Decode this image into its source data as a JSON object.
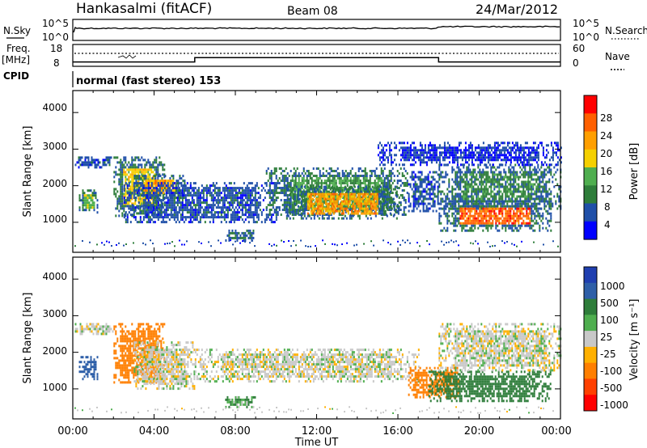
{
  "header": {
    "station": "Hankasalmi (fitACF)",
    "beam": "Beam 08",
    "date": "24/Mar/2012"
  },
  "noise_panel": {
    "left_label": "N.Sky",
    "left_ticks": [
      "10^5",
      "10^0"
    ],
    "right_label": "N.Search",
    "right_ticks": [
      "10^5",
      "10^0"
    ]
  },
  "freq_panel": {
    "left_label_1": "Freq.",
    "left_label_2": "[MHz]",
    "left_ticks": [
      "18",
      "8"
    ],
    "right_label": "Nave",
    "right_ticks": [
      "60",
      "0"
    ]
  },
  "cpid_panel": {
    "label": "CPID",
    "mode_text": "normal (fast stereo) 153"
  },
  "power_panel": {
    "ylabel": "Slant Range [km]",
    "y_ticks": [
      "4000",
      "3000",
      "2000",
      "1000"
    ],
    "colorbar_label": "Power [dB]",
    "colorbar_ticks": [
      "28",
      "24",
      "20",
      "16",
      "12",
      "8",
      "4"
    ],
    "colors": [
      "#0000ff",
      "#1f4fa8",
      "#2e7d3a",
      "#4fae4f",
      "#f5d000",
      "#ff9f00",
      "#ff6000",
      "#ff0000"
    ]
  },
  "velocity_panel": {
    "ylabel": "Slant Range [km]",
    "y_ticks": [
      "4000",
      "3000",
      "2000",
      "1000"
    ],
    "colorbar_label": "Velocity [m s⁻¹]",
    "colorbar_ticks": [
      "1000",
      "500",
      "100",
      "25",
      "-25",
      "-100",
      "-500",
      "-1000"
    ],
    "colors": [
      "#1f3fb0",
      "#2e5fa8",
      "#2e7d3a",
      "#4fae4f",
      "#c8c8c8",
      "#ffb000",
      "#ff7f00",
      "#ff4000",
      "#ff0000"
    ]
  },
  "x_axis": {
    "ticks": [
      "00:00",
      "04:00",
      "08:00",
      "12:00",
      "16:00",
      "20:00",
      "00:00"
    ],
    "label": "Time UT"
  },
  "chart_data": {
    "type": "heatmap",
    "title": "Hankasalmi (fitACF)",
    "x_range_hours": [
      0,
      24
    ],
    "y_range_km": [
      180,
      4600
    ],
    "frequency_mhz_segments": [
      {
        "start_hour": 0,
        "end_hour": 6,
        "value": 10
      },
      {
        "start_hour": 6,
        "end_hour": 18,
        "value": 12
      },
      {
        "start_hour": 18,
        "end_hour": 24,
        "value": 10
      }
    ],
    "power_regions_db": [
      {
        "t0": 0.1,
        "t1": 2.0,
        "r0": 2500,
        "r1": 2800,
        "db": 8
      },
      {
        "t0": 0.3,
        "t1": 1.2,
        "r0": 1300,
        "r1": 1900,
        "db": 16
      },
      {
        "t0": 2.0,
        "t1": 4.5,
        "r0": 1200,
        "r1": 2800,
        "db": 20
      },
      {
        "t0": 3.0,
        "t1": 5.5,
        "r0": 1700,
        "r1": 2300,
        "db": 24
      },
      {
        "t0": 2.5,
        "t1": 10.0,
        "r0": 1000,
        "r1": 2100,
        "db": 8
      },
      {
        "t0": 7.5,
        "t1": 9.0,
        "r0": 500,
        "r1": 800,
        "db": 10
      },
      {
        "t0": 9.5,
        "t1": 16.5,
        "r0": 1200,
        "r1": 2500,
        "db": 14
      },
      {
        "t0": 10.5,
        "t1": 16.0,
        "r0": 1100,
        "r1": 2000,
        "db": 24
      },
      {
        "t0": 16.5,
        "t1": 18.0,
        "r0": 1300,
        "r1": 2400,
        "db": 8
      },
      {
        "t0": 18.0,
        "t1": 24.0,
        "r0": 1400,
        "r1": 2600,
        "db": 12
      },
      {
        "t0": 18.0,
        "t1": 23.5,
        "r0": 800,
        "r1": 1600,
        "db": 28
      },
      {
        "t0": 15.0,
        "t1": 24.0,
        "r0": 2600,
        "r1": 3200,
        "db": 6
      }
    ],
    "velocity_regions_ms": [
      {
        "t0": 0.1,
        "t1": 2.0,
        "r0": 2500,
        "r1": 2800,
        "v": 0
      },
      {
        "t0": 0.3,
        "t1": 1.2,
        "r0": 1300,
        "r1": 1900,
        "v": 500
      },
      {
        "t0": 2.0,
        "t1": 4.5,
        "r0": 1200,
        "r1": 2800,
        "v": -300
      },
      {
        "t0": 3.0,
        "t1": 6.0,
        "r0": 1000,
        "r1": 2300,
        "v": 0
      },
      {
        "t0": 6.0,
        "t1": 17.0,
        "r0": 1200,
        "r1": 2100,
        "v": 0
      },
      {
        "t0": 7.5,
        "t1": 9.0,
        "r0": 500,
        "r1": 800,
        "v": 50
      },
      {
        "t0": 16.5,
        "t1": 19.0,
        "r0": 800,
        "r1": 1600,
        "v": -300
      },
      {
        "t0": 17.5,
        "t1": 23.5,
        "r0": 700,
        "r1": 1500,
        "v": 200
      },
      {
        "t0": 18.0,
        "t1": 24.0,
        "r0": 1500,
        "r1": 2800,
        "v": 0
      }
    ]
  }
}
